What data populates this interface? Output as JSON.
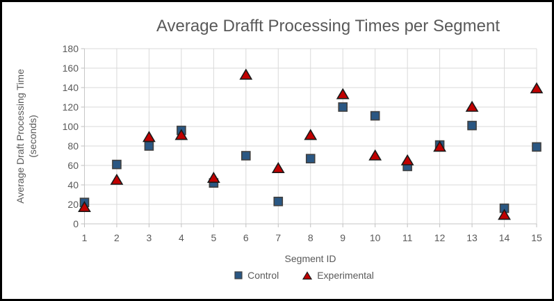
{
  "chart_data": {
    "type": "scatter",
    "title": "Average Drafft Processing Times per Segment",
    "xlabel": "Segment ID",
    "ylabel": "Average Draft Processing Time (seconds)",
    "ylabel_lines": [
      "Average Draft Processing Time",
      "(seconds)"
    ],
    "x": [
      1,
      2,
      3,
      4,
      5,
      6,
      7,
      8,
      9,
      10,
      11,
      12,
      13,
      14,
      15
    ],
    "series": [
      {
        "name": "Control",
        "marker": "square",
        "fill": "#2A5783",
        "stroke": "#404040",
        "values": [
          22,
          61,
          80,
          96,
          42,
          70,
          23,
          67,
          120,
          111,
          59,
          81,
          101,
          16,
          79
        ]
      },
      {
        "name": "Experimental",
        "marker": "triangle",
        "fill": "#C00000",
        "stroke": "#1A1A1A",
        "values": [
          17,
          45,
          89,
          91,
          47,
          153,
          57,
          91,
          133,
          70,
          65,
          79,
          120,
          9,
          139
        ]
      }
    ],
    "xlim": [
      1,
      15
    ],
    "ylim": [
      0,
      180
    ],
    "xticks": [
      1,
      2,
      3,
      4,
      5,
      6,
      7,
      8,
      9,
      10,
      11,
      12,
      13,
      14,
      15
    ],
    "yticks": [
      0,
      20,
      40,
      60,
      80,
      100,
      120,
      140,
      160,
      180
    ],
    "grid": true,
    "legend_position": "bottom",
    "colors": {
      "gridline": "#D9D9D9",
      "axis": "#C6C6C6",
      "tick": "#BFBFBF",
      "text": "#595959",
      "frame": "#000000",
      "background": "#FFFFFF"
    }
  }
}
